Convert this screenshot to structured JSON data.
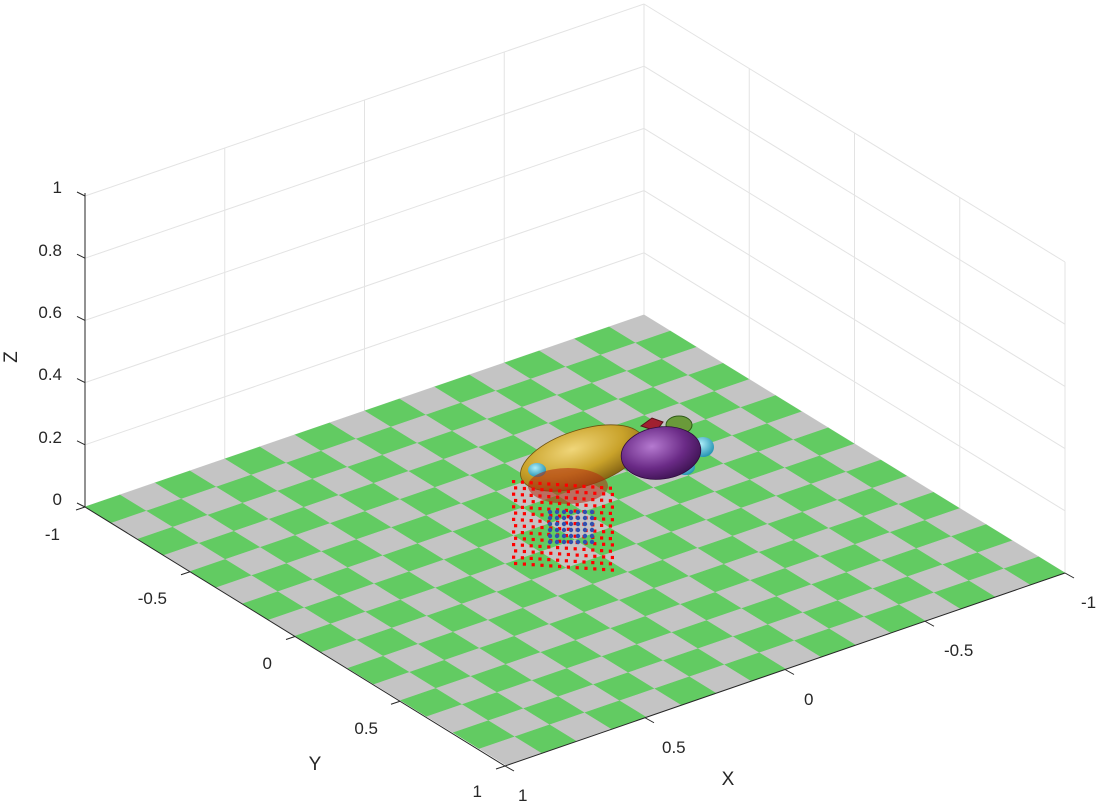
{
  "figure": {
    "background": "#ffffff"
  },
  "axes": {
    "x": {
      "label": "X",
      "ticks": [
        "-1",
        "-0.5",
        "0",
        "0.5",
        "1"
      ],
      "range": [
        -1,
        1
      ]
    },
    "y": {
      "label": "Y",
      "ticks": [
        "-1",
        "-0.5",
        "0",
        "0.5",
        "1"
      ],
      "range": [
        -1,
        1
      ]
    },
    "z": {
      "label": "Z",
      "ticks": [
        "0",
        "0.2",
        "0.4",
        "0.6",
        "0.8",
        "1"
      ],
      "range": [
        0,
        1
      ]
    },
    "grid": true,
    "grid_color": "#e3e3e3",
    "axis_color": "#262626"
  },
  "floor": {
    "pattern": "checkerboard",
    "tiles_per_side": 16,
    "color_a": "#62cb62",
    "color_b": "#c4c4c4"
  },
  "objects": [
    {
      "name": "robot-body",
      "color": "#6a2a86"
    },
    {
      "name": "robot-head",
      "color": "#c9a22a"
    },
    {
      "name": "robot-eye",
      "color": "#3cc3e0"
    },
    {
      "name": "robot-antenna",
      "color": "#a02030"
    },
    {
      "name": "point-cloud",
      "color": "#ff0000"
    },
    {
      "name": "inner-cloud",
      "color": "#3050b0"
    }
  ]
}
